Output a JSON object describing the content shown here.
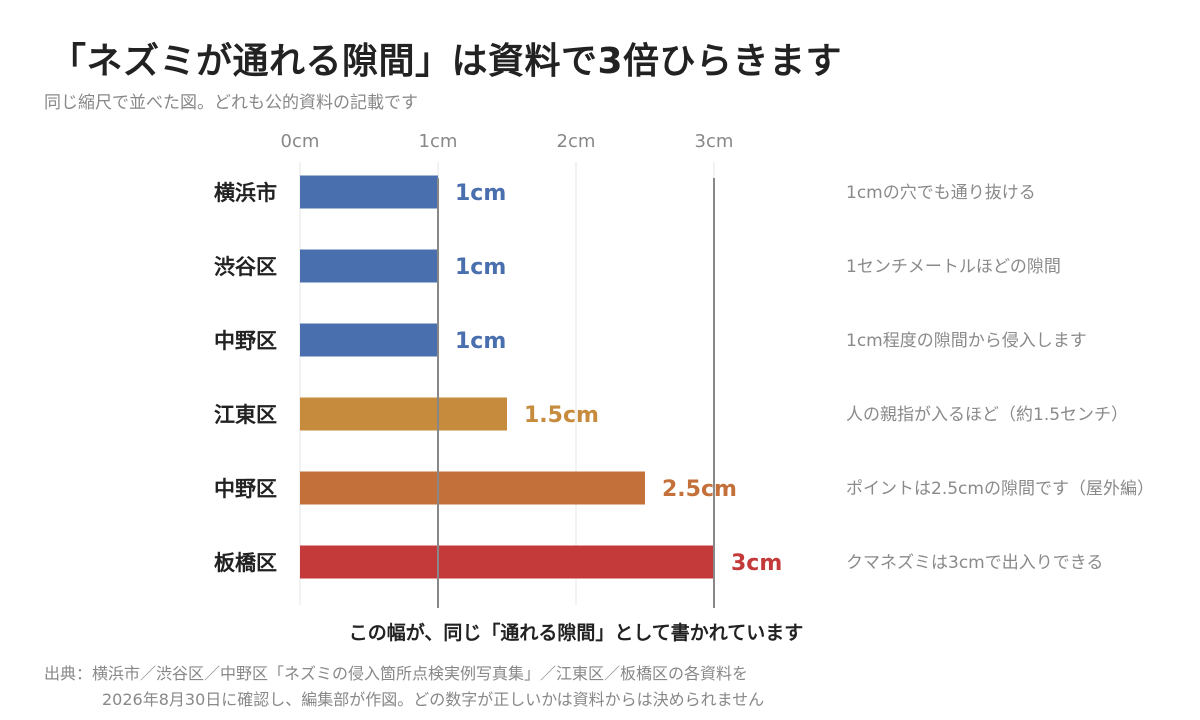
{
  "title": "「ネズミが通れる隙間」は資料で3倍ひらきます",
  "subtitle": "同じ縮尺で並べた図。どれも公的資料の記載です",
  "chart_data": {
    "type": "bar",
    "orientation": "horizontal",
    "x_ticks": [
      "0cm",
      "1cm",
      "2cm",
      "3cm"
    ],
    "xlim": [
      0,
      3
    ],
    "reference_lines": [
      1,
      3
    ],
    "rows": [
      {
        "category": "横浜市",
        "value": 1,
        "value_label": "1cm",
        "note": "1cmの穴でも通り抜ける",
        "color": "#4a6fae"
      },
      {
        "category": "渋谷区",
        "value": 1,
        "value_label": "1cm",
        "note": "1センチメートルほどの隙間",
        "color": "#4a6fae"
      },
      {
        "category": "中野区",
        "value": 1,
        "value_label": "1cm",
        "note": "1cm程度の隙間から侵入します",
        "color": "#4a6fae"
      },
      {
        "category": "江東区",
        "value": 1.5,
        "value_label": "1.5cm",
        "note": "人の親指が入るほど（約1.5センチ）",
        "color": "#c68b3c"
      },
      {
        "category": "中野区",
        "value": 2.5,
        "value_label": "2.5cm",
        "note": "ポイントは2.5cmの隙間です（屋外編）",
        "color": "#c4703a"
      },
      {
        "category": "板橋区",
        "value": 3,
        "value_label": "3cm",
        "note": "クマネズミは3cmで出入りできる",
        "color": "#c43a3a"
      }
    ]
  },
  "caption": "この幅が、同じ「通れる隙間」として書かれています",
  "source": {
    "line1": "出典：横浜市／渋谷区／中野区「ネズミの侵入箇所点検実例写真集」／江東区／板橋区の各資料を",
    "line2": "2026年8月30日に確認し、編集部が作図。どの数字が正しいかは資料からは決められません"
  }
}
